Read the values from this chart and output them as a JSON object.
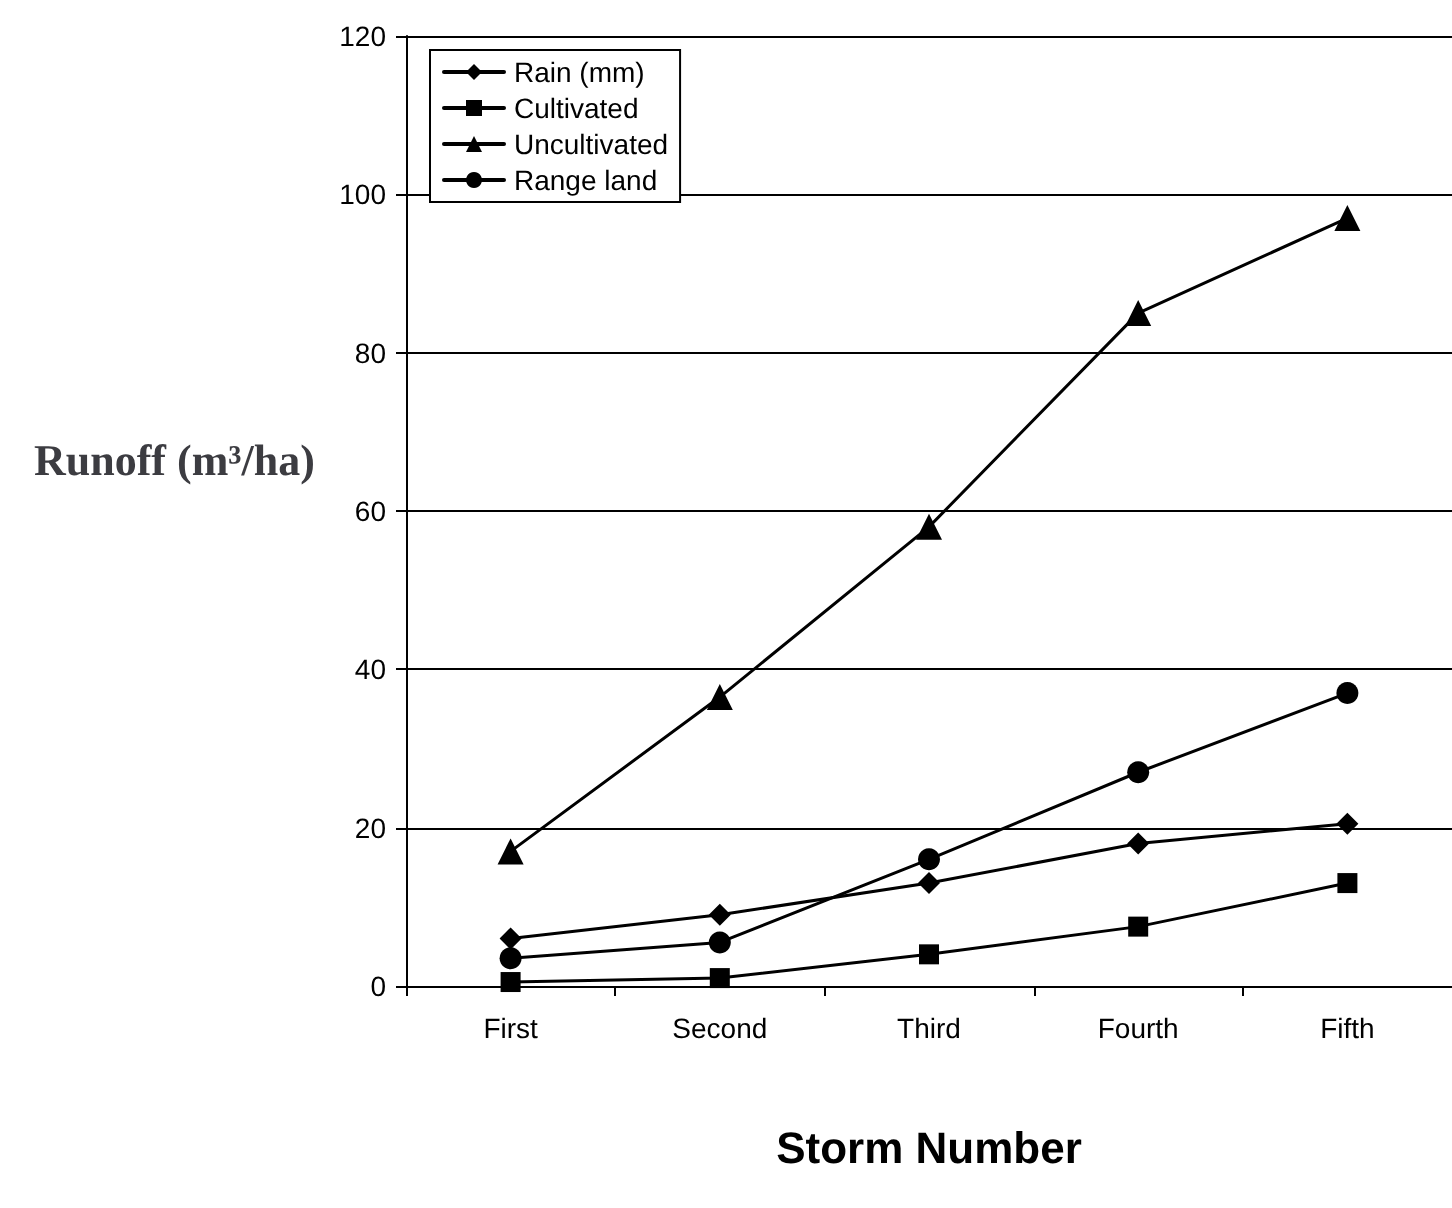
{
  "chart_data": {
    "type": "line",
    "xlabel": "Storm Number",
    "ylabel": "Runoff (m³/ha)",
    "categories": [
      "First",
      "Second",
      "Third",
      "Fourth",
      "Fifth"
    ],
    "series": [
      {
        "name": "Rain (mm)",
        "color": "#000000",
        "marker": "diamond",
        "values": [
          6,
          9,
          13,
          18,
          20.5
        ]
      },
      {
        "name": "Cultivated",
        "color": "#000000",
        "marker": "square",
        "values": [
          0.5,
          1,
          4,
          7.5,
          13
        ]
      },
      {
        "name": "Uncultivated",
        "color": "#000000",
        "marker": "triangle",
        "values": [
          17,
          36.5,
          58,
          85,
          97
        ]
      },
      {
        "name": "Range land",
        "color": "#000000",
        "marker": "circle",
        "values": [
          3.5,
          5.5,
          16,
          27,
          37
        ]
      }
    ],
    "ylim": [
      0,
      120
    ],
    "yticks": [
      0,
      20,
      40,
      60,
      80,
      100,
      120
    ],
    "grid": "y",
    "legend": "top left",
    "line_style": "solid"
  }
}
